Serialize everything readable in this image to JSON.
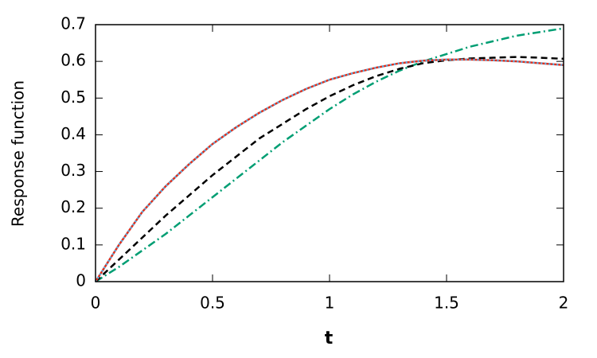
{
  "chart_data": {
    "type": "line",
    "xlabel": "t",
    "ylabel": "Response function",
    "x": [
      0,
      0.1,
      0.2,
      0.3,
      0.4,
      0.5,
      0.6,
      0.7,
      0.8,
      0.9,
      1.0,
      1.1,
      1.2,
      1.3,
      1.4,
      1.5,
      1.6,
      1.7,
      1.8,
      1.9,
      2.0
    ],
    "series": [
      {
        "color": "#009e73",
        "style": "dashdot",
        "values": [
          0,
          0.04,
          0.085,
          0.13,
          0.18,
          0.23,
          0.28,
          0.33,
          0.38,
          0.425,
          0.47,
          0.51,
          0.545,
          0.575,
          0.6,
          0.62,
          0.64,
          0.655,
          0.67,
          0.68,
          0.69
        ]
      },
      {
        "color": "#000000",
        "style": "dashed",
        "values": [
          0,
          0.06,
          0.12,
          0.18,
          0.235,
          0.29,
          0.34,
          0.39,
          0.43,
          0.47,
          0.505,
          0.535,
          0.56,
          0.58,
          0.595,
          0.603,
          0.608,
          0.61,
          0.612,
          0.61,
          0.607
        ]
      },
      {
        "color": "#e0301e",
        "style": "solid",
        "values": [
          0,
          0.1,
          0.19,
          0.26,
          0.32,
          0.375,
          0.42,
          0.46,
          0.495,
          0.525,
          0.55,
          0.568,
          0.583,
          0.595,
          0.602,
          0.605,
          0.605,
          0.603,
          0.6,
          0.595,
          0.59
        ]
      },
      {
        "color": "#56b4e9",
        "style": "dotted",
        "values": [
          0,
          0.1,
          0.19,
          0.26,
          0.32,
          0.375,
          0.42,
          0.46,
          0.495,
          0.525,
          0.55,
          0.568,
          0.583,
          0.595,
          0.602,
          0.605,
          0.605,
          0.603,
          0.6,
          0.595,
          0.59
        ]
      }
    ],
    "xlim": [
      0,
      2
    ],
    "ylim": [
      0,
      0.7
    ],
    "xticks": [
      0,
      0.5,
      1,
      1.5,
      2
    ],
    "yticks": [
      0,
      0.1,
      0.2,
      0.3,
      0.4,
      0.5,
      0.6,
      0.7
    ]
  }
}
